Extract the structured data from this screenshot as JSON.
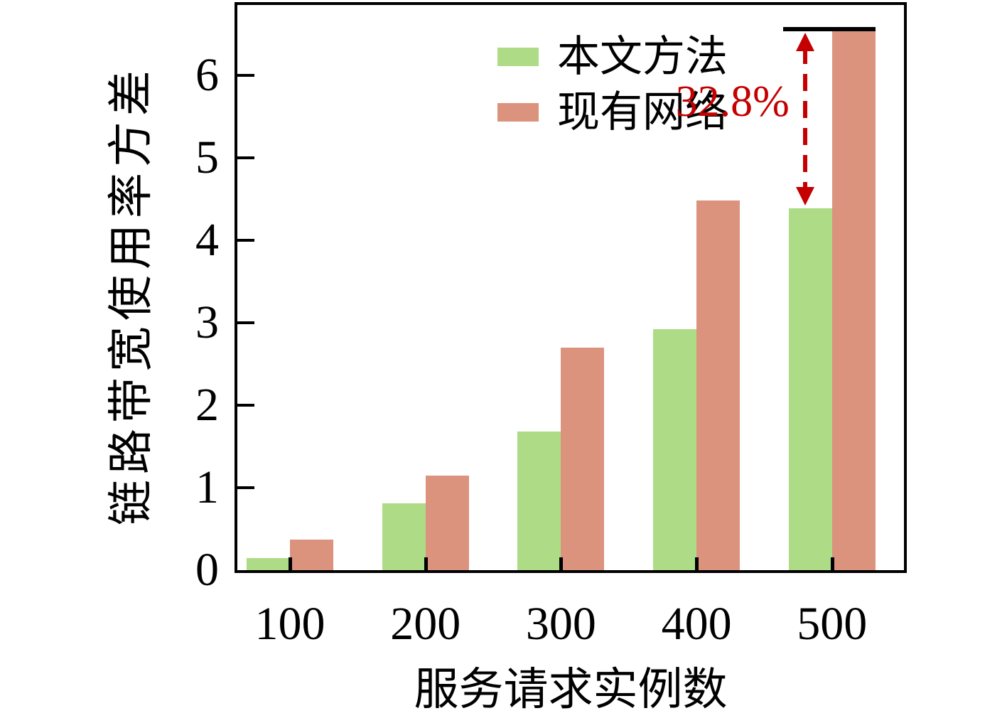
{
  "chart_data": {
    "type": "bar",
    "categories": [
      "100",
      "200",
      "300",
      "400",
      "500"
    ],
    "series": [
      {
        "name": "本文方法",
        "color": "#aedb85",
        "values": [
          0.15,
          0.81,
          1.68,
          2.92,
          4.39
        ]
      },
      {
        "name": "现有网络",
        "color": "#dc937e",
        "values": [
          0.37,
          1.15,
          2.7,
          4.48,
          6.55
        ]
      }
    ],
    "title": "",
    "xlabel": "服务请求实例数",
    "ylabel": "链路带宽使用率方差",
    "yticks": [
      0,
      1,
      2,
      3,
      4,
      5,
      6
    ],
    "ylim": [
      0,
      6.85
    ],
    "grid": false,
    "legend_position": "upper-left",
    "annotation": {
      "label": "32.8%",
      "color": "#c40000",
      "category": "500",
      "from_series": "现有网络",
      "to_series": "本文方法",
      "cap_color": "#000000"
    }
  }
}
